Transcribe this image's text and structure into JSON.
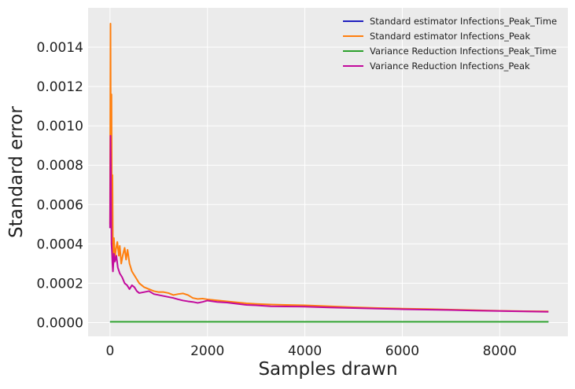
{
  "chart_data": {
    "type": "line",
    "title": "",
    "xlabel": "Samples drawn",
    "ylabel": "Standard error",
    "xlim": [
      -450,
      9400
    ],
    "ylim": [
      -7e-05,
      0.0016
    ],
    "xticks": [
      0,
      2000,
      4000,
      6000,
      8000
    ],
    "xtick_labels": [
      "0",
      "2000",
      "4000",
      "6000",
      "8000"
    ],
    "yticks": [
      0,
      0.0002,
      0.0004,
      0.0006,
      0.0008,
      0.001,
      0.0012,
      0.0014
    ],
    "ytick_labels": [
      "0.0000",
      "0.0002",
      "0.0004",
      "0.0006",
      "0.0008",
      "0.0010",
      "0.0012",
      "0.0014"
    ],
    "grid": true,
    "legend_position": "top-right",
    "background": "#ebebeb",
    "series": [
      {
        "name": "Standard estimator Infections_Peak_Time",
        "color": "#1f1fbf",
        "x": [
          0,
          9000
        ],
        "y": [
          4e-06,
          4e-06
        ]
      },
      {
        "name": "Standard estimator Infections_Peak",
        "color": "#ff7f0e",
        "x": [
          0,
          10,
          20,
          30,
          40,
          50,
          60,
          70,
          80,
          100,
          120,
          150,
          180,
          200,
          230,
          260,
          300,
          330,
          360,
          400,
          450,
          500,
          550,
          600,
          700,
          800,
          900,
          1000,
          1100,
          1200,
          1300,
          1400,
          1500,
          1600,
          1700,
          1800,
          1900,
          2000,
          2200,
          2400,
          2600,
          2800,
          3000,
          3300,
          3600,
          4000,
          4500,
          5000,
          5500,
          6000,
          6500,
          7000,
          7500,
          8000,
          8500,
          9000
        ],
        "y": [
          0.0005,
          0.00152,
          0.0006,
          0.00116,
          0.00045,
          0.00075,
          0.00035,
          0.0003,
          0.00043,
          0.00033,
          0.00037,
          0.00041,
          0.00034,
          0.00039,
          0.0003,
          0.00034,
          0.00038,
          0.00032,
          0.00037,
          0.0003,
          0.00026,
          0.00024,
          0.00022,
          0.0002,
          0.00018,
          0.00017,
          0.00016,
          0.000155,
          0.000155,
          0.00015,
          0.00014,
          0.000145,
          0.000148,
          0.00014,
          0.000125,
          0.00012,
          0.000122,
          0.000118,
          0.000113,
          0.000108,
          0.000103,
          9.8e-05,
          9.5e-05,
          9.2e-05,
          9e-05,
          8.8e-05,
          8.3e-05,
          7.8e-05,
          7.4e-05,
          7.1e-05,
          6.9e-05,
          6.6e-05,
          6.3e-05,
          6e-05,
          5.8e-05,
          5.7e-05
        ]
      },
      {
        "name": "Variance Reduction Infections_Peak_Time",
        "color": "#2ca02c",
        "x": [
          0,
          9000
        ],
        "y": [
          4e-06,
          4e-06
        ]
      },
      {
        "name": "Variance Reduction Infections_Peak",
        "color": "#c20a9c",
        "x": [
          0,
          10,
          20,
          30,
          40,
          50,
          60,
          80,
          100,
          130,
          160,
          200,
          250,
          300,
          350,
          400,
          450,
          500,
          550,
          600,
          700,
          800,
          900,
          1000,
          1100,
          1200,
          1300,
          1400,
          1500,
          1600,
          1700,
          1800,
          1900,
          2000,
          2200,
          2400,
          2600,
          2800,
          3000,
          3300,
          3600,
          4000,
          4500,
          5000,
          5500,
          6000,
          6500,
          7000,
          7500,
          8000,
          8500,
          9000
        ],
        "y": [
          0.00048,
          0.00095,
          0.0007,
          0.0004,
          0.00036,
          0.0003,
          0.00026,
          0.00035,
          0.00031,
          0.00034,
          0.00028,
          0.00025,
          0.00023,
          0.0002,
          0.00019,
          0.00017,
          0.00019,
          0.00018,
          0.00016,
          0.00015,
          0.000155,
          0.00016,
          0.000145,
          0.00014,
          0.000135,
          0.00013,
          0.000125,
          0.000118,
          0.000112,
          0.000108,
          0.000105,
          0.0001,
          0.000105,
          0.000112,
          0.000105,
          0.000102,
          9.6e-05,
          9e-05,
          8.8e-05,
          8.3e-05,
          8.2e-05,
          8.1e-05,
          7.7e-05,
          7.4e-05,
          7.1e-05,
          6.8e-05,
          6.6e-05,
          6.4e-05,
          6.1e-05,
          5.9e-05,
          5.7e-05,
          5.5e-05
        ]
      }
    ]
  }
}
